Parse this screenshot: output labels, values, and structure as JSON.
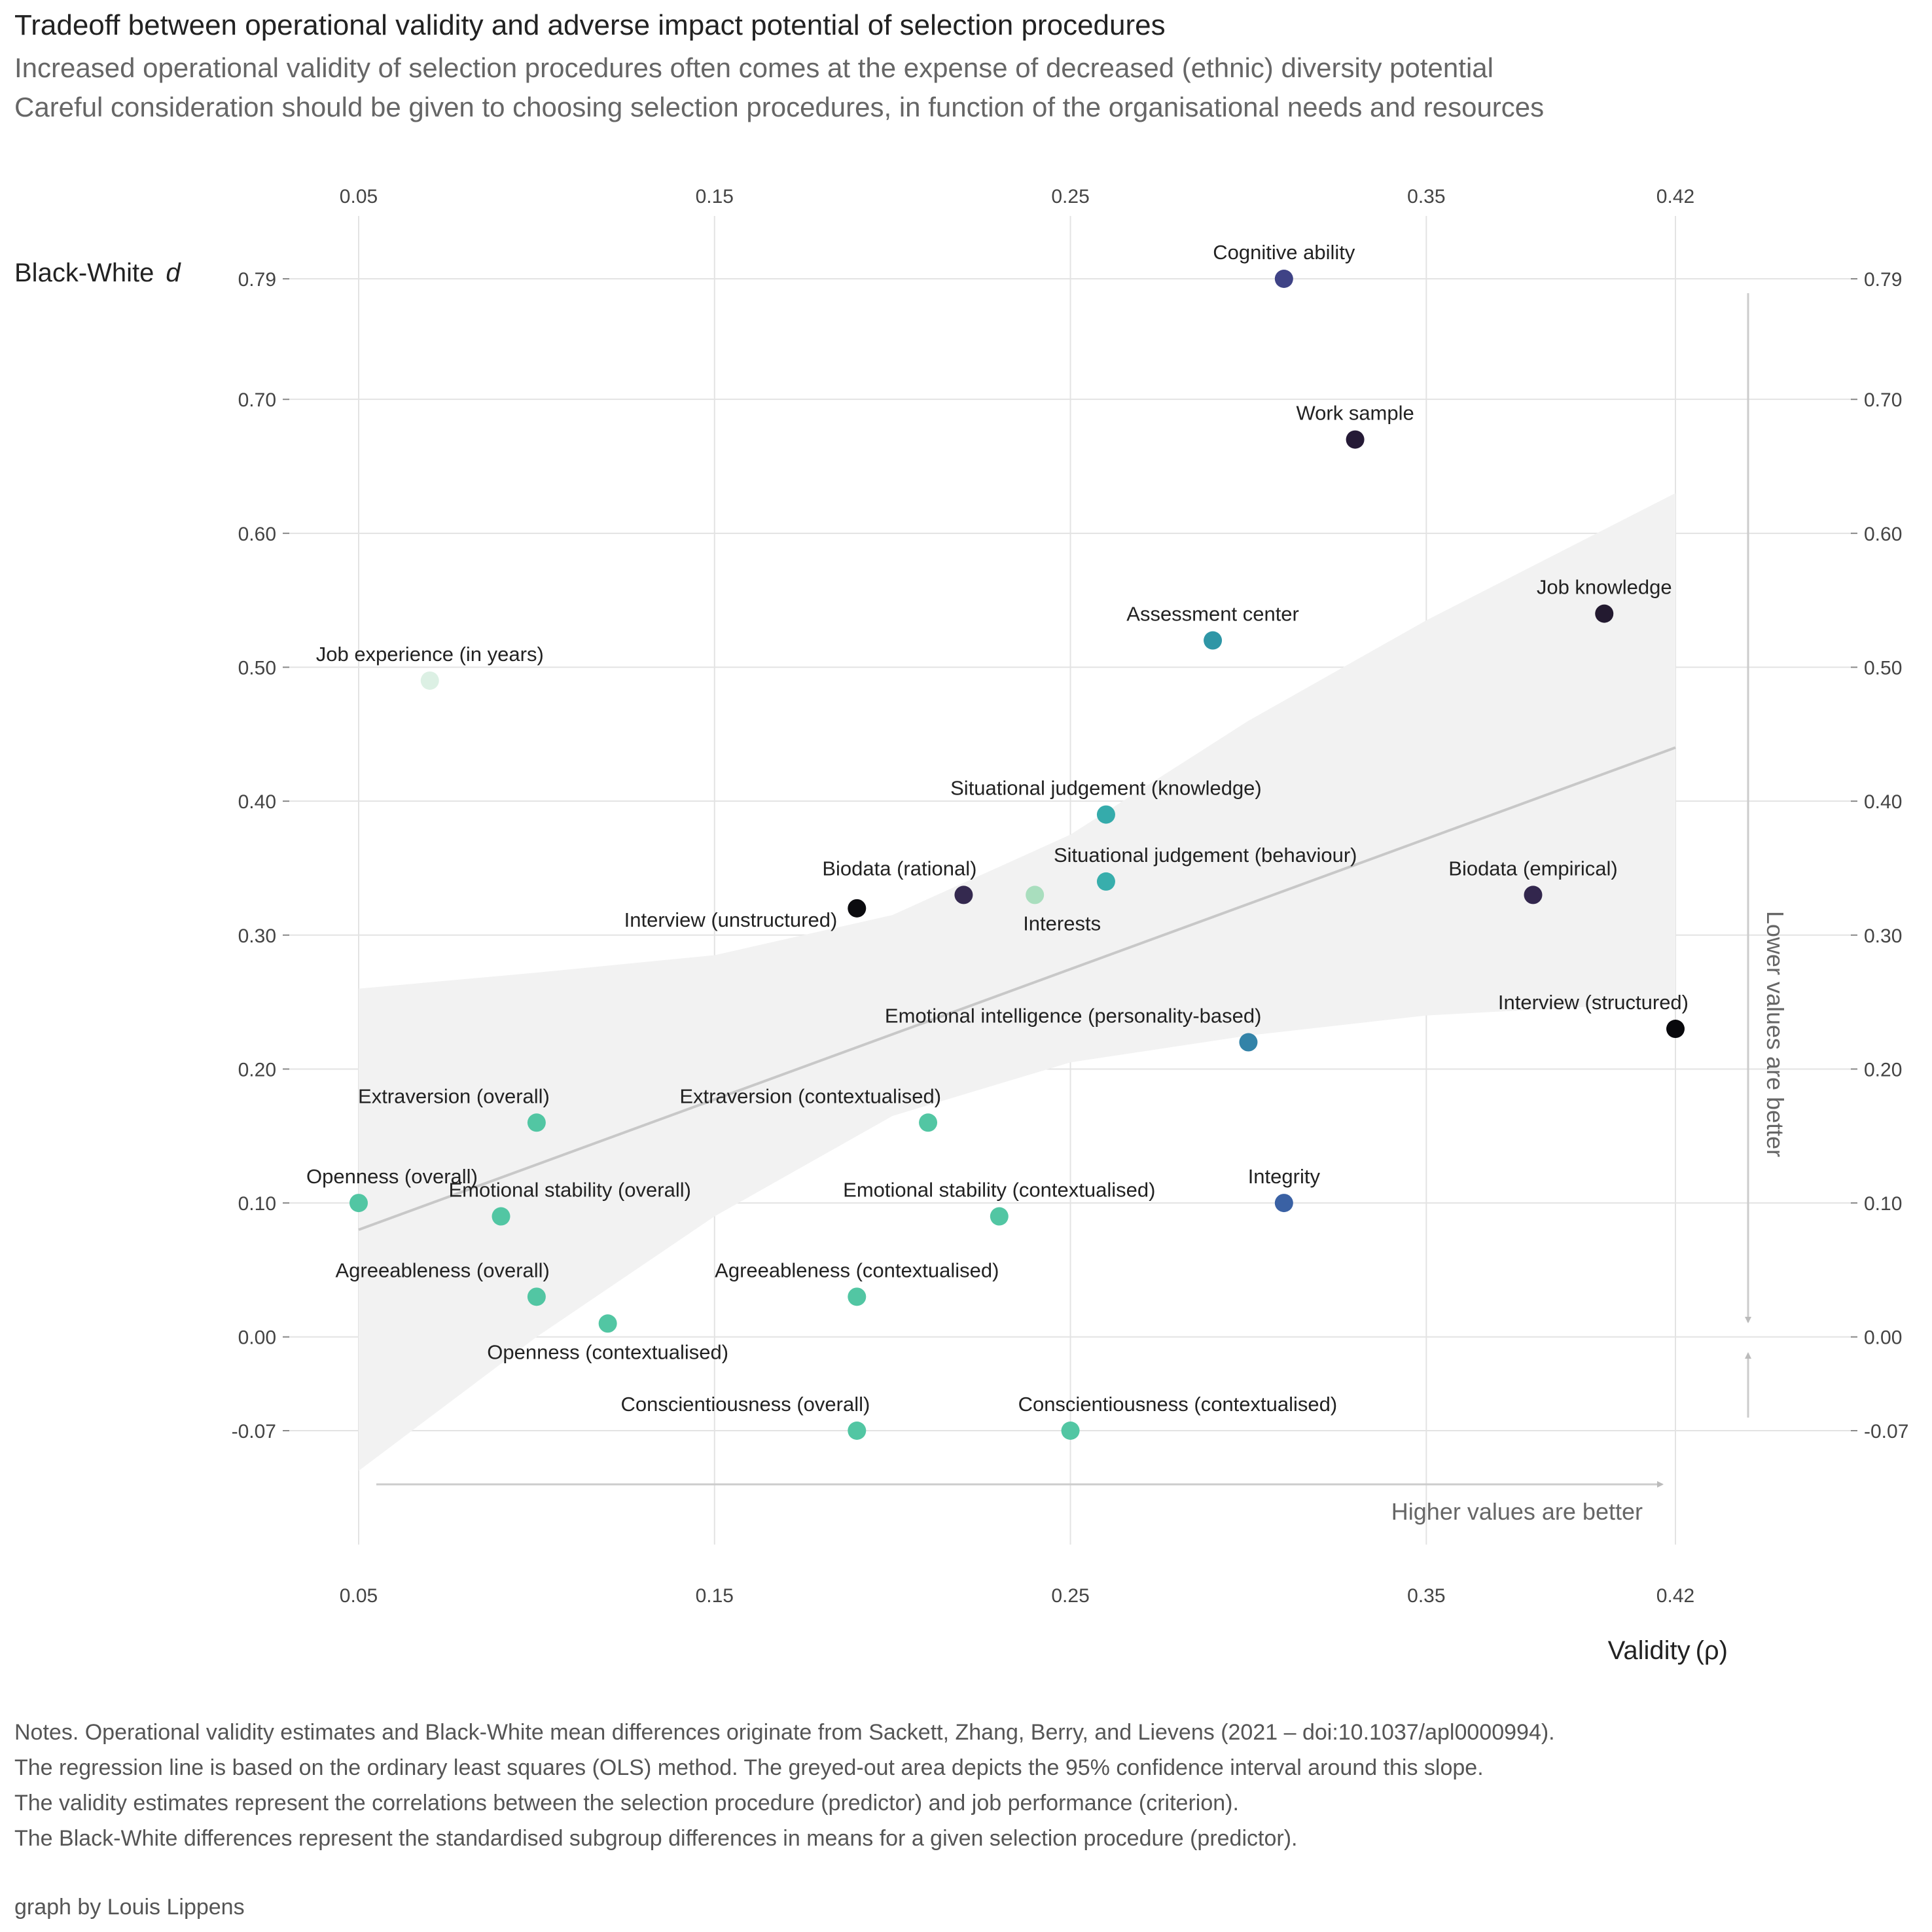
{
  "title": "Tradeoff between operational validity and adverse impact potential of selection procedures",
  "subtitle_lines": [
    "Increased operational validity of selection procedures often comes at the expense of decreased (ethnic) diversity potential",
    "Careful consideration should be given to choosing selection procedures, in function of the organisational needs and resources"
  ],
  "notes": [
    "Notes. Operational validity estimates and Black-White mean differences originate from Sackett, Zhang, Berry, and Lievens (2021 – doi:10.1037/apl0000994).",
    "The regression line is based on the ordinary least squares (OLS) method. The greyed-out area depicts the 95% confidence interval around this slope.",
    "The validity estimates represent the correlations between the selection procedure (predictor) and job performance (criterion).",
    "The Black-White differences represent the standardised subgroup differences in means for a given selection procedure (predictor)."
  ],
  "credit": "graph by Louis Lippens",
  "chart_data": {
    "type": "scatter",
    "xlabel_main": "Validity",
    "xlabel_symbol": "(ρ)",
    "ylabel_main": "Black-White",
    "ylabel_symbol": "d",
    "x_ticks": [
      0.05,
      0.15,
      0.25,
      0.35,
      0.42
    ],
    "x_tick_labels": [
      "0.05",
      "0.15",
      "0.25",
      "0.35",
      "0.42"
    ],
    "y_ticks": [
      -0.07,
      0.0,
      0.1,
      0.2,
      0.3,
      0.4,
      0.5,
      0.6,
      0.7,
      0.79
    ],
    "y_tick_labels": [
      "-0.07",
      "0.00",
      "0.10",
      "0.20",
      "0.30",
      "0.40",
      "0.50",
      "0.60",
      "0.70",
      "0.79"
    ],
    "xlim": [
      0.05,
      0.42
    ],
    "ylim": [
      -0.07,
      0.79
    ],
    "grid": true,
    "x_hint": "Higher values are better",
    "y_hint": "Lower values are better",
    "regression": {
      "line": [
        [
          0.05,
          0.08
        ],
        [
          0.42,
          0.44
        ]
      ],
      "ci_upper": [
        [
          0.05,
          0.26
        ],
        [
          0.1,
          0.272
        ],
        [
          0.15,
          0.285
        ],
        [
          0.2,
          0.315
        ],
        [
          0.25,
          0.375
        ],
        [
          0.3,
          0.46
        ],
        [
          0.35,
          0.535
        ],
        [
          0.42,
          0.63
        ]
      ],
      "ci_lower": [
        [
          0.05,
          -0.1
        ],
        [
          0.1,
          0.0
        ],
        [
          0.15,
          0.09
        ],
        [
          0.2,
          0.165
        ],
        [
          0.25,
          0.205
        ],
        [
          0.3,
          0.225
        ],
        [
          0.35,
          0.24
        ],
        [
          0.42,
          0.25
        ]
      ]
    },
    "points": [
      {
        "label": "Cognitive ability",
        "x": 0.31,
        "y": 0.79,
        "color": "#3F4386",
        "pos": "above"
      },
      {
        "label": "Work sample",
        "x": 0.33,
        "y": 0.67,
        "color": "#251A36",
        "pos": "above"
      },
      {
        "label": "Job knowledge",
        "x": 0.4,
        "y": 0.54,
        "color": "#231A30",
        "pos": "above"
      },
      {
        "label": "Assessment center",
        "x": 0.29,
        "y": 0.52,
        "color": "#2F96A6",
        "pos": "above"
      },
      {
        "label": "Job experience (in years)",
        "x": 0.07,
        "y": 0.49,
        "color": "#DCF0E4",
        "pos": "above"
      },
      {
        "label": "Situational judgement (knowledge)",
        "x": 0.26,
        "y": 0.39,
        "color": "#35ABAB",
        "pos": "above"
      },
      {
        "label": "Situational judgement (behaviour)",
        "x": 0.26,
        "y": 0.34,
        "color": "#38AEAC",
        "pos": "above-right"
      },
      {
        "label": "Biodata (rational)",
        "x": 0.22,
        "y": 0.33,
        "color": "#34294F",
        "pos": "above-left"
      },
      {
        "label": "Interests",
        "x": 0.24,
        "y": 0.33,
        "color": "#A9DEBE",
        "pos": "below-right"
      },
      {
        "label": "Biodata (empirical)",
        "x": 0.38,
        "y": 0.33,
        "color": "#32264D",
        "pos": "above"
      },
      {
        "label": "Interview (unstructured)",
        "x": 0.19,
        "y": 0.32,
        "color": "#0B0B0F",
        "pos": "left"
      },
      {
        "label": "Interview (structured)",
        "x": 0.42,
        "y": 0.23,
        "color": "#08080C",
        "pos": "above-left"
      },
      {
        "label": "Emotional intelligence (personality-based)",
        "x": 0.3,
        "y": 0.22,
        "color": "#3383A8",
        "pos": "above-left"
      },
      {
        "label": "Extraversion (overall)",
        "x": 0.1,
        "y": 0.16,
        "color": "#52C6A3",
        "pos": "above-left"
      },
      {
        "label": "Extraversion (contextualised)",
        "x": 0.21,
        "y": 0.16,
        "color": "#52C6A3",
        "pos": "above-left"
      },
      {
        "label": "Openness (overall)",
        "x": 0.05,
        "y": 0.1,
        "color": "#52C6A3",
        "pos": "above-right"
      },
      {
        "label": "Integrity",
        "x": 0.31,
        "y": 0.1,
        "color": "#3A61A4",
        "pos": "above"
      },
      {
        "label": "Emotional stability (overall)",
        "x": 0.09,
        "y": 0.09,
        "color": "#52C6A3",
        "pos": "above-right"
      },
      {
        "label": "Emotional stability (contextualised)",
        "x": 0.23,
        "y": 0.09,
        "color": "#52C6A3",
        "pos": "above"
      },
      {
        "label": "Agreeableness (overall)",
        "x": 0.1,
        "y": 0.03,
        "color": "#52C6A3",
        "pos": "above-left"
      },
      {
        "label": "Agreeableness (contextualised)",
        "x": 0.19,
        "y": 0.03,
        "color": "#52C6A3",
        "pos": "above"
      },
      {
        "label": "Openness (contextualised)",
        "x": 0.12,
        "y": 0.01,
        "color": "#52C6A3",
        "pos": "below"
      },
      {
        "label": "Conscientiousness (overall)",
        "x": 0.19,
        "y": -0.07,
        "color": "#52C6A3",
        "pos": "above-left"
      },
      {
        "label": "Conscientiousness (contextualised)",
        "x": 0.25,
        "y": -0.07,
        "color": "#52C6A3",
        "pos": "above-right"
      }
    ]
  }
}
